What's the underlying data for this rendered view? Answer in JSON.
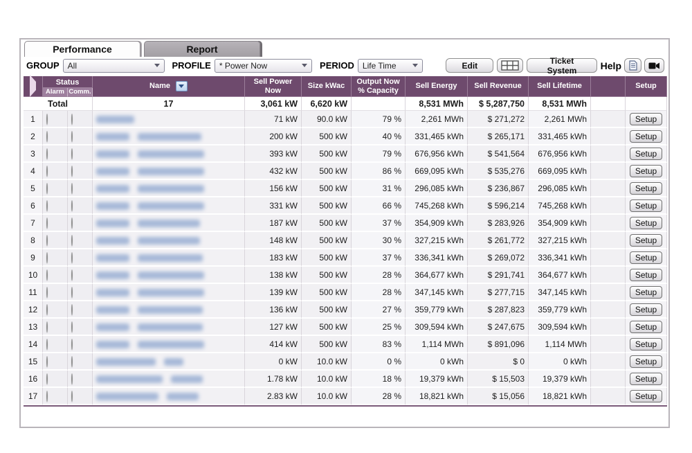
{
  "tabs": [
    {
      "label": "Performance",
      "active": true
    },
    {
      "label": "Report",
      "active": false
    }
  ],
  "toolbar": {
    "group_label": "GROUP",
    "group_value": "All",
    "profile_label": "PROFILE",
    "profile_value": "* Power Now",
    "period_label": "PERIOD",
    "period_value": "Life Time",
    "edit_button": "Edit",
    "ticket_button": "Ticket System",
    "help_label": "Help"
  },
  "table": {
    "headers": {
      "status": "Status",
      "alarm": "Alarm",
      "comm": "Comm.",
      "name": "Name",
      "sell_power": "Sell Power Now",
      "size": "Size kWac",
      "output": "Output Now % Capacity",
      "energy": "Sell Energy",
      "revenue": "Sell Revenue",
      "lifetime": "Sell Lifetime",
      "setup": "Setup"
    },
    "total": {
      "label": "Total",
      "count": "17",
      "sell_power": "3,061 kW",
      "size": "6,620 kW",
      "output": "",
      "energy": "8,531 MWh",
      "revenue": "$ 5,287,750",
      "lifetime": "8,531 MWh"
    },
    "setup_button_label": "Setup",
    "rows": [
      {
        "num": "1",
        "alarm": "yellow",
        "comm": "green",
        "name_blur": [
          55
        ],
        "sell_power": "71 kW",
        "size": "90.0 kW",
        "output": "79 %",
        "energy": "2,261 MWh",
        "revenue": "$ 271,272",
        "lifetime": "2,261 MWh"
      },
      {
        "num": "2",
        "alarm": "yellow",
        "comm": "green",
        "name_blur": [
          48,
          92
        ],
        "sell_power": "200 kW",
        "size": "500 kW",
        "output": "40 %",
        "energy": "331,465 kWh",
        "revenue": "$ 265,171",
        "lifetime": "331,465 kWh"
      },
      {
        "num": "3",
        "alarm": "green",
        "comm": "green",
        "name_blur": [
          48,
          96
        ],
        "sell_power": "393 kW",
        "size": "500 kW",
        "output": "79 %",
        "energy": "676,956 kWh",
        "revenue": "$ 541,564",
        "lifetime": "676,956 kWh"
      },
      {
        "num": "4",
        "alarm": "orange",
        "comm": "green",
        "name_blur": [
          48,
          96
        ],
        "sell_power": "432 kW",
        "size": "500 kW",
        "output": "86 %",
        "energy": "669,095 kWh",
        "revenue": "$ 535,276",
        "lifetime": "669,095 kWh"
      },
      {
        "num": "5",
        "alarm": "green",
        "comm": "green",
        "name_blur": [
          48,
          96
        ],
        "sell_power": "156 kW",
        "size": "500 kW",
        "output": "31 %",
        "energy": "296,085 kWh",
        "revenue": "$ 236,867",
        "lifetime": "296,085 kWh"
      },
      {
        "num": "6",
        "alarm": "orange",
        "comm": "green",
        "name_blur": [
          48,
          96
        ],
        "sell_power": "331 kW",
        "size": "500 kW",
        "output": "66 %",
        "energy": "745,268 kWh",
        "revenue": "$ 596,214",
        "lifetime": "745,268 kWh"
      },
      {
        "num": "7",
        "alarm": "green",
        "comm": "green",
        "name_blur": [
          48,
          90
        ],
        "sell_power": "187 kW",
        "size": "500 kW",
        "output": "37 %",
        "energy": "354,909 kWh",
        "revenue": "$ 283,926",
        "lifetime": "354,909 kWh"
      },
      {
        "num": "8",
        "alarm": "green",
        "comm": "green",
        "name_blur": [
          48,
          90
        ],
        "sell_power": "148 kW",
        "size": "500 kW",
        "output": "30 %",
        "energy": "327,215 kWh",
        "revenue": "$ 261,772",
        "lifetime": "327,215 kWh"
      },
      {
        "num": "9",
        "alarm": "yellow",
        "comm": "green",
        "name_blur": [
          48,
          94
        ],
        "sell_power": "183 kW",
        "size": "500 kW",
        "output": "37 %",
        "energy": "336,341 kWh",
        "revenue": "$ 269,072",
        "lifetime": "336,341 kWh"
      },
      {
        "num": "10",
        "alarm": "green",
        "comm": "green",
        "name_blur": [
          48,
          96
        ],
        "sell_power": "138 kW",
        "size": "500 kW",
        "output": "28 %",
        "energy": "364,677 kWh",
        "revenue": "$ 291,741",
        "lifetime": "364,677 kWh"
      },
      {
        "num": "11",
        "alarm": "green",
        "comm": "green",
        "name_blur": [
          48,
          96
        ],
        "sell_power": "139 kW",
        "size": "500 kW",
        "output": "28 %",
        "energy": "347,145 kWh",
        "revenue": "$ 277,715",
        "lifetime": "347,145 kWh"
      },
      {
        "num": "12",
        "alarm": "yellow",
        "comm": "green",
        "name_blur": [
          48,
          94
        ],
        "sell_power": "136 kW",
        "size": "500 kW",
        "output": "27 %",
        "energy": "359,779 kWh",
        "revenue": "$ 287,823",
        "lifetime": "359,779 kWh"
      },
      {
        "num": "13",
        "alarm": "yellow",
        "comm": "green",
        "name_blur": [
          48,
          94
        ],
        "sell_power": "127 kW",
        "size": "500 kW",
        "output": "25 %",
        "energy": "309,594 kWh",
        "revenue": "$ 247,675",
        "lifetime": "309,594 kWh"
      },
      {
        "num": "14",
        "alarm": "green",
        "comm": "green",
        "name_blur": [
          48,
          96
        ],
        "sell_power": "414 kW",
        "size": "500 kW",
        "output": "83 %",
        "energy": "1,114 MWh",
        "revenue": "$ 891,096",
        "lifetime": "1,114 MWh"
      },
      {
        "num": "15",
        "alarm": "yellow",
        "comm": "orange",
        "name_blur": [
          86,
          28
        ],
        "sell_power": "0 kW",
        "size": "10.0 kW",
        "output": "0 %",
        "energy": "0 kWh",
        "revenue": "$ 0",
        "lifetime": "0 kWh"
      },
      {
        "num": "16",
        "alarm": "green",
        "comm": "green",
        "name_blur": [
          96,
          46
        ],
        "sell_power": "1.78 kW",
        "size": "10.0 kW",
        "output": "18 %",
        "energy": "19,379 kWh",
        "revenue": "$ 15,503",
        "lifetime": "19,379 kWh"
      },
      {
        "num": "17",
        "alarm": "green",
        "comm": "green",
        "name_blur": [
          90,
          46
        ],
        "sell_power": "2.83 kW",
        "size": "10.0 kW",
        "output": "28 %",
        "energy": "18,821 kWh",
        "revenue": "$ 15,056",
        "lifetime": "18,821 kWh"
      }
    ]
  },
  "colors": {
    "header_purple": "#6e4a6d",
    "subheader_purple": "#9e7f9e",
    "led_green": "#47df18",
    "led_yellow": "#efe9a2",
    "led_orange": "#ef8c50",
    "name_link_blue": "#87a1cc"
  }
}
